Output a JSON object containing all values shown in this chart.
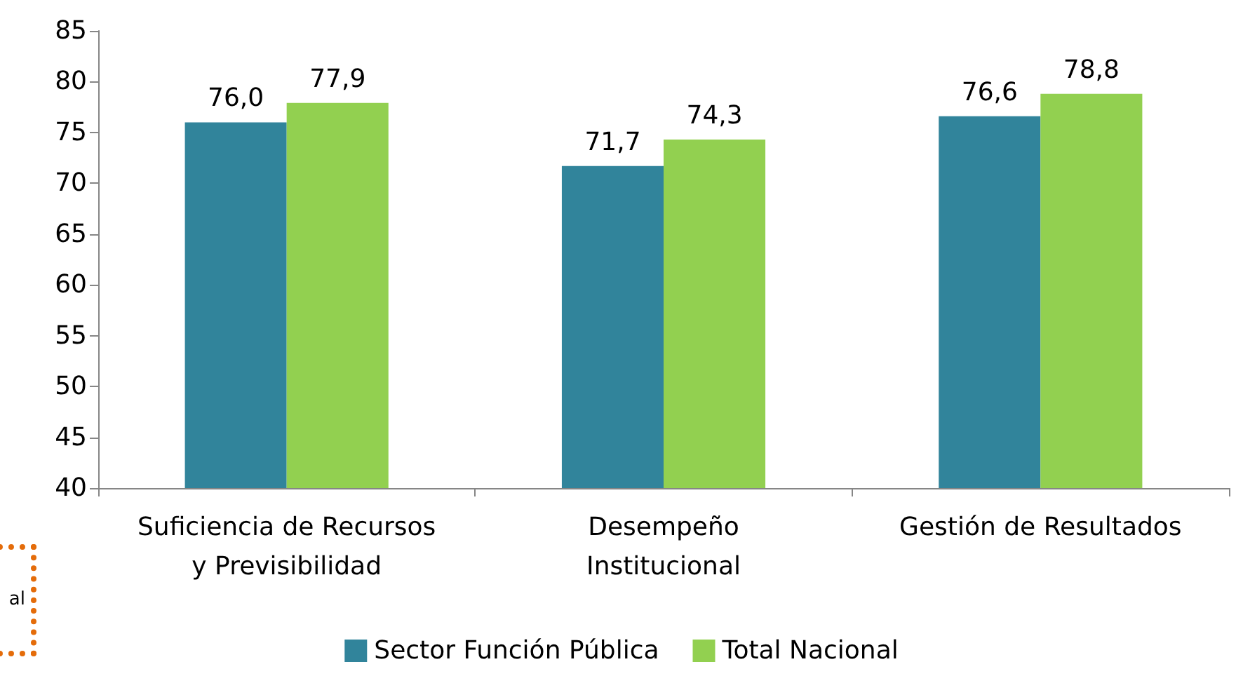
{
  "chart_data": {
    "type": "bar",
    "categories": [
      "Suficiencia de Recursos\ny Previsibilidad",
      "Desempeño\nInstitucional",
      "Gestión de Resultados"
    ],
    "series": [
      {
        "name": "Sector Función Pública",
        "color": "#31849b",
        "values": [
          76.0,
          71.7,
          76.6
        ],
        "value_labels": [
          "76,0",
          "71,7",
          "76,6"
        ]
      },
      {
        "name": "Total Nacional",
        "color": "#92d050",
        "values": [
          77.9,
          74.3,
          78.8
        ],
        "value_labels": [
          "77,9",
          "74,3",
          "78,8"
        ]
      }
    ],
    "ylim": [
      40,
      85
    ],
    "yticks": [
      40,
      45,
      50,
      55,
      60,
      65,
      70,
      75,
      80,
      85
    ],
    "grid": false,
    "legend": "bottom",
    "annotations": [
      "al"
    ]
  }
}
